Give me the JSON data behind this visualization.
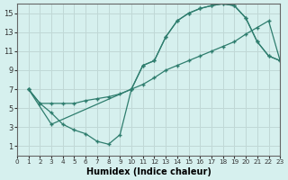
{
  "xlabel": "Humidex (Indice chaleur)",
  "bg_color": "#d6f0ee",
  "grid_color": "#c0d8d6",
  "line_color": "#2e7d6e",
  "xlim": [
    0,
    23
  ],
  "ylim": [
    0,
    16
  ],
  "xticks": [
    0,
    1,
    2,
    3,
    4,
    5,
    6,
    7,
    8,
    9,
    10,
    11,
    12,
    13,
    14,
    15,
    16,
    17,
    18,
    19,
    20,
    21,
    22,
    23
  ],
  "yticks": [
    1,
    3,
    5,
    7,
    9,
    11,
    13,
    15
  ],
  "line1_x": [
    1,
    2,
    3,
    4,
    5,
    6,
    7,
    8,
    9,
    10,
    11,
    12,
    13,
    14,
    15,
    16,
    17,
    18,
    19,
    20,
    21,
    22,
    23
  ],
  "line1_y": [
    7,
    5.5,
    5.5,
    5.5,
    5.5,
    5.8,
    6.0,
    6.2,
    6.5,
    7.0,
    7.5,
    8.2,
    9.0,
    9.5,
    10.0,
    10.5,
    11.0,
    11.5,
    12.0,
    12.8,
    13.5,
    14.2,
    10.0
  ],
  "line2_x": [
    1,
    2,
    3,
    4,
    5,
    6,
    7,
    8,
    9,
    10,
    11,
    12,
    13,
    14,
    15,
    16,
    17,
    18,
    19,
    20,
    21,
    22,
    23
  ],
  "line2_y": [
    7,
    5.5,
    4.5,
    3.3,
    2.7,
    2.3,
    1.5,
    1.2,
    2.2,
    7.0,
    9.5,
    10.0,
    12.5,
    14.2,
    15.0,
    15.5,
    15.8,
    16.0,
    15.8,
    14.5,
    12.0,
    10.5,
    10.0
  ],
  "line3_x": [
    1,
    3,
    10,
    11,
    12,
    13,
    14,
    15,
    16,
    17,
    18,
    19,
    20,
    21,
    22,
    23
  ],
  "line3_y": [
    7,
    3.3,
    7.0,
    9.5,
    10.0,
    12.5,
    14.2,
    15.0,
    15.5,
    15.8,
    16.0,
    15.8,
    14.5,
    12.0,
    10.5,
    10.0
  ]
}
